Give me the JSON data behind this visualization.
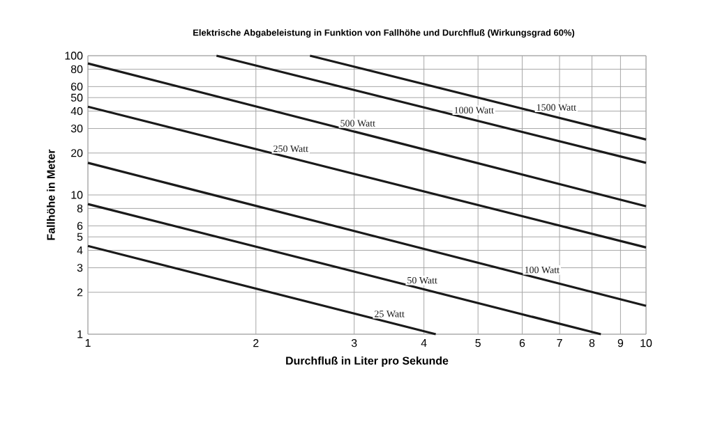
{
  "chart_data": {
    "type": "line",
    "title": "Elektrische Abgabeleistung in Funktion von Fallhöhe und Durchfluß (Wirkungsgrad 60%)",
    "xlabel": "Durchfluß in Liter pro Sekunde",
    "ylabel": "Fallhöhe in Meter",
    "log": "xy",
    "grid": true,
    "marker": "none",
    "line_style": "solid",
    "xlim": [
      1,
      10
    ],
    "ylim": [
      1,
      100
    ],
    "xticks": [
      1,
      2,
      3,
      4,
      5,
      6,
      7,
      8,
      9,
      10
    ],
    "yticks": [
      1,
      2,
      3,
      4,
      5,
      6,
      8,
      10,
      20,
      30,
      40,
      50,
      60,
      80,
      100
    ],
    "series": [
      {
        "name": "25 Watt",
        "color": "#1a1a1a",
        "x": [
          1,
          4.2
        ],
        "values": [
          4.3,
          1
        ]
      },
      {
        "name": "50 Watt",
        "color": "#1a1a1a",
        "x": [
          1,
          8.3
        ],
        "values": [
          8.6,
          1
        ]
      },
      {
        "name": "100 Watt",
        "color": "#1a1a1a",
        "x": [
          1,
          10
        ],
        "values": [
          17,
          1.6
        ]
      },
      {
        "name": "250 Watt",
        "color": "#1a1a1a",
        "x": [
          1,
          10
        ],
        "values": [
          43,
          4.2
        ]
      },
      {
        "name": "500 Watt",
        "color": "#1a1a1a",
        "x": [
          1,
          10
        ],
        "values": [
          88,
          8.3
        ]
      },
      {
        "name": "1000 Watt",
        "color": "#1a1a1a",
        "x": [
          1.7,
          10
        ],
        "values": [
          100,
          17
        ]
      },
      {
        "name": "1500 Watt",
        "color": "#1a1a1a",
        "x": [
          2.5,
          10
        ],
        "values": [
          100,
          25
        ]
      }
    ]
  }
}
